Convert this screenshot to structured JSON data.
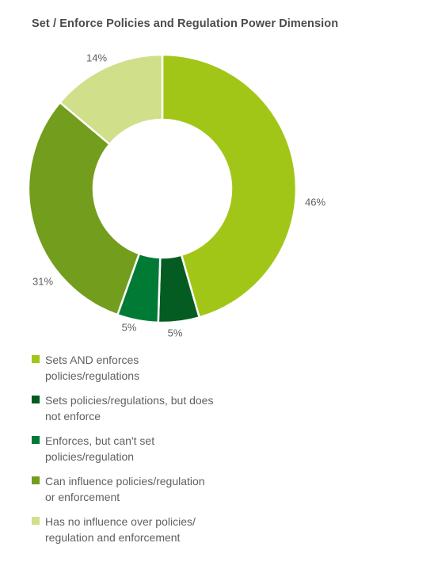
{
  "title": "Set / Enforce Policies and Regulation Power Dimension",
  "chart_data": {
    "type": "pie",
    "variant": "donut",
    "categories": [
      "Sets AND enforces policies/regulations",
      "Sets policies/regulations, but does not enforce",
      "Enforces, but can't set policies/regulation",
      "Can influence policies/regulation or enforcement",
      "Has no influence over policies/ regulation and enforcement"
    ],
    "values": [
      46,
      5,
      5,
      31,
      14
    ],
    "labels": [
      "46%",
      "5%",
      "5%",
      "31%",
      "14%"
    ],
    "colors": [
      "#a2c617",
      "#045c22",
      "#017a36",
      "#739d1c",
      "#cfdf8a"
    ],
    "legend_position": "bottom-left"
  },
  "legend": [
    {
      "line1": "Sets AND enforces",
      "line2": "policies/regulations",
      "color": "#a2c617"
    },
    {
      "line1": "Sets policies/regulations, but does",
      "line2": "not enforce",
      "color": "#045c22"
    },
    {
      "line1": "Enforces, but can't set",
      "line2": "policies/regulation",
      "color": "#017a36"
    },
    {
      "line1": "Can influence policies/regulation",
      "line2": "or enforcement",
      "color": "#739d1c"
    },
    {
      "line1": "Has no influence over policies/",
      "line2": "regulation and enforcement",
      "color": "#cfdf8a"
    }
  ]
}
